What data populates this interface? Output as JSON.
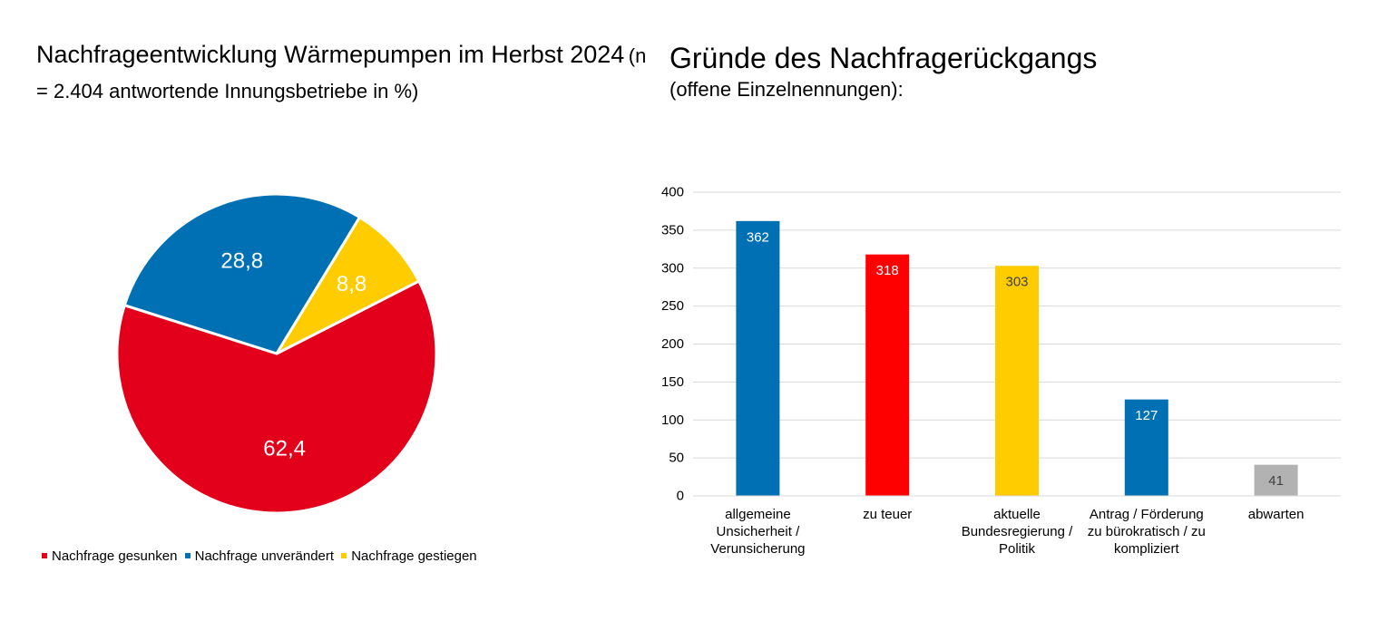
{
  "left_title": {
    "main": "Nachfrageentwicklung Wärmepumpen im Herbst 2024",
    "sub": "(n = 2.404 antwortende Innungsbetriebe in %)"
  },
  "right_title": {
    "main": "Gründe des Nachfragerückgangs",
    "sub": "(offene Einzelnennungen):"
  },
  "chart_data": [
    {
      "type": "pie",
      "labels": [
        "Nachfrage gesunken",
        "Nachfrage unverändert",
        "Nachfrage gestiegen"
      ],
      "values": [
        62.4,
        28.8,
        8.8
      ],
      "value_labels": [
        "62,4",
        "28,8",
        "8,8"
      ],
      "colors": [
        "#e2001a",
        "#0070b4",
        "#ffcc00"
      ],
      "legend_position": "bottom"
    },
    {
      "type": "bar",
      "categories": [
        "allgemeine Unsicherheit / Verunsicherung",
        "zu teuer",
        "aktuelle Bundesregierung / Politik",
        "Antrag / Förderung zu bürokratisch / zu kompliziert",
        "abwarten"
      ],
      "category_lines": [
        [
          "allgemeine",
          "Unsicherheit /",
          "Verunsicherung"
        ],
        [
          "zu teuer"
        ],
        [
          "aktuelle",
          "Bundesregierung /",
          "Politik"
        ],
        [
          "Antrag / Förderung",
          "zu bürokratisch / zu",
          "kompliziert"
        ],
        [
          "abwarten"
        ]
      ],
      "values": [
        362,
        318,
        303,
        127,
        41
      ],
      "colors": [
        "#0070b4",
        "#ff0000",
        "#ffcc00",
        "#0070b4",
        "#b2b2b2"
      ],
      "label_colors": [
        "#ffffff",
        "#ffffff",
        "#404040",
        "#ffffff",
        "#404040"
      ],
      "ylim": [
        0,
        400
      ],
      "yticks": [
        0,
        50,
        100,
        150,
        200,
        250,
        300,
        350,
        400
      ],
      "grid": true
    }
  ]
}
